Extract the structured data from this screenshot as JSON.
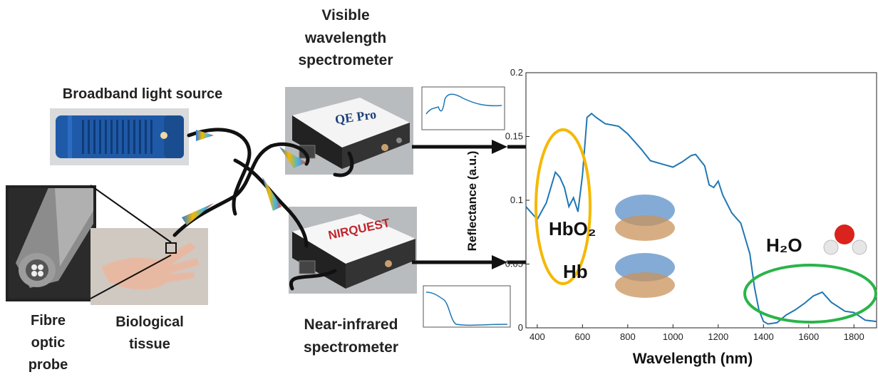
{
  "labels": {
    "light_source": "Broadband light source",
    "visible_spec": "Visible wavelength spectrometer",
    "nir_spec": "Near-infrared spectrometer",
    "probe": "Fibre optic probe",
    "tissue": "Biological tissue"
  },
  "devices": {
    "qepro_brand": "QE Pro",
    "nirquest_brand": "NIRQUEST"
  },
  "chart": {
    "xlabel": "Wavelength (nm)",
    "ylabel": "Reflectance (a.u.)",
    "xticks": [
      "400",
      "600",
      "800",
      "1000",
      "1200",
      "1400",
      "1600",
      "1800"
    ],
    "yticks": [
      "0",
      "0.05",
      "0.1",
      "0.15",
      "0.2"
    ],
    "annotations": {
      "hbo2": "HbO₂",
      "hb": "Hb",
      "h2o": "H₂O"
    }
  },
  "chart_data": {
    "type": "line",
    "xlabel": "Wavelength (nm)",
    "ylabel": "Reflectance (a.u.)",
    "xlim": [
      350,
      1900
    ],
    "ylim": [
      0,
      0.2
    ],
    "series": [
      {
        "x": [
          350,
          400,
          440,
          480,
          500,
          520,
          540,
          560,
          580,
          600,
          620,
          640,
          660,
          700,
          760,
          800,
          860,
          900,
          960,
          1000,
          1040,
          1080,
          1100,
          1140,
          1160,
          1180,
          1200,
          1220,
          1260,
          1300,
          1340,
          1360,
          1380,
          1400,
          1420,
          1460,
          1500,
          1540,
          1580,
          1620,
          1660,
          1700,
          1760,
          1800,
          1850,
          1900
        ],
        "y": [
          0.095,
          0.085,
          0.098,
          0.122,
          0.118,
          0.11,
          0.095,
          0.102,
          0.091,
          0.12,
          0.165,
          0.168,
          0.165,
          0.16,
          0.158,
          0.152,
          0.14,
          0.131,
          0.128,
          0.126,
          0.13,
          0.135,
          0.136,
          0.127,
          0.112,
          0.11,
          0.115,
          0.104,
          0.09,
          0.082,
          0.058,
          0.032,
          0.014,
          0.005,
          0.003,
          0.004,
          0.01,
          0.014,
          0.019,
          0.025,
          0.028,
          0.02,
          0.013,
          0.012,
          0.006,
          0.005
        ]
      }
    ]
  },
  "colors": {
    "line": "#1f77b4",
    "hb_ellipse": "#f5b800",
    "water_ellipse": "#2ab44a",
    "fiber": "#111111",
    "device_blue": "#1f5aa8",
    "brand_red": "#c0262d"
  }
}
